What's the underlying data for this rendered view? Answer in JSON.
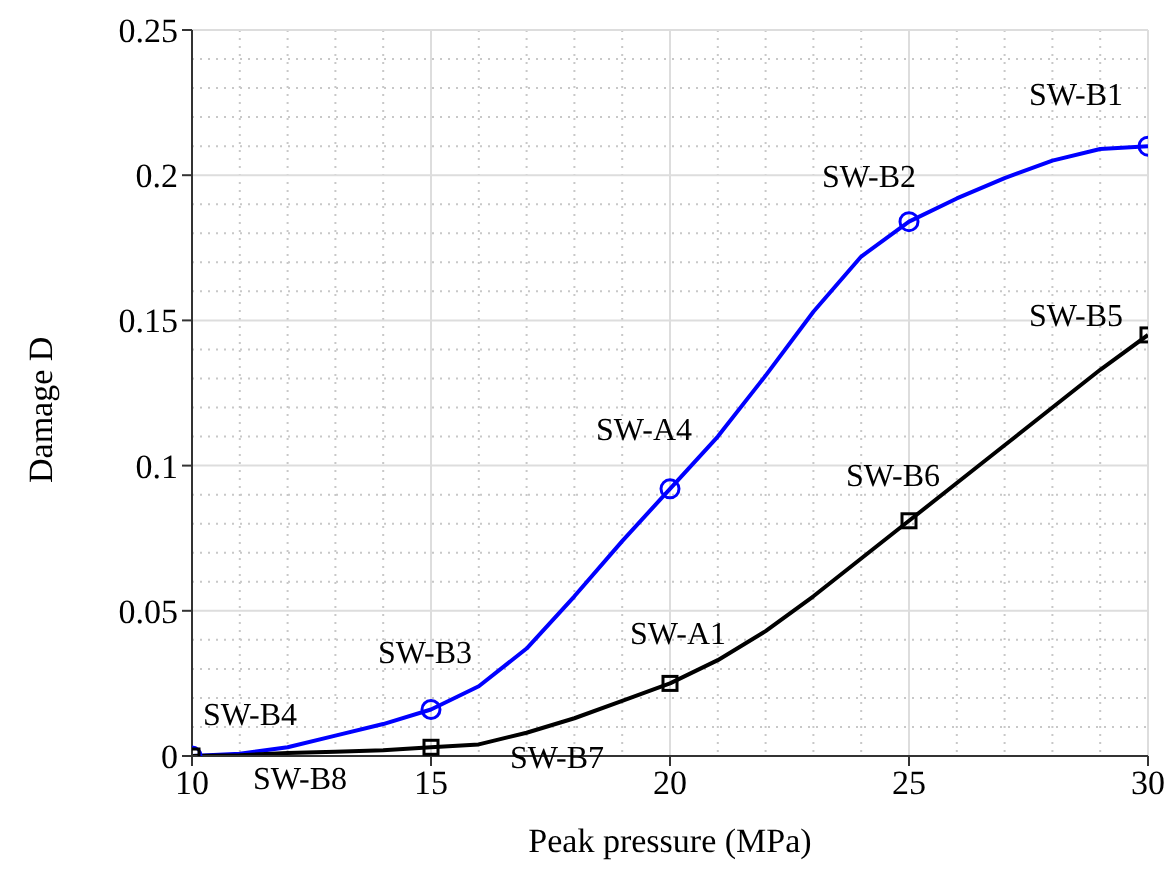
{
  "chart_data": {
    "type": "line",
    "xlabel": "Peak pressure (MPa)",
    "ylabel": "Damage D",
    "xlim": [
      10,
      30
    ],
    "xticks": [
      10,
      15,
      20,
      25,
      30
    ],
    "ylim": [
      0,
      0.25
    ],
    "yticks": [
      0,
      0.05,
      0.1,
      0.15,
      0.2,
      0.25
    ],
    "grid": true,
    "line_style": "solid",
    "series": [
      {
        "color": "#0000ff",
        "marker": "none",
        "x": [
          10,
          11,
          12,
          13,
          14,
          15,
          16,
          17,
          18,
          19,
          20,
          21,
          22,
          23,
          24,
          25,
          26,
          27,
          28,
          29,
          30
        ],
        "values": [
          0,
          0.0008,
          0.003,
          0.007,
          0.011,
          0.016,
          0.024,
          0.037,
          0.055,
          0.074,
          0.092,
          0.11,
          0.131,
          0.153,
          0.172,
          0.184,
          0.192,
          0.199,
          0.205,
          0.209,
          0.21
        ]
      },
      {
        "type": "scatter",
        "color": "#0000ff",
        "marker": "circle",
        "x": [
          10,
          15,
          20,
          25,
          30
        ],
        "values": [
          0,
          0.016,
          0.092,
          0.184,
          0.21
        ]
      },
      {
        "color": "#000000",
        "marker": "none",
        "x": [
          10,
          11,
          12,
          13,
          14,
          15,
          16,
          17,
          18,
          19,
          20,
          21,
          22,
          23,
          24,
          25,
          26,
          27,
          28,
          29,
          30
        ],
        "values": [
          0,
          0.0003,
          0.001,
          0.0015,
          0.002,
          0.003,
          0.004,
          0.008,
          0.013,
          0.019,
          0.025,
          0.033,
          0.043,
          0.055,
          0.068,
          0.081,
          0.094,
          0.107,
          0.12,
          0.133,
          0.145
        ]
      },
      {
        "type": "scatter",
        "color": "#000000",
        "marker": "square",
        "x": [
          10,
          15,
          20,
          25,
          30
        ],
        "values": [
          0,
          0.003,
          0.025,
          0.081,
          0.145
        ]
      }
    ],
    "annotations": [
      {
        "text": "SW-B4",
        "x": 10,
        "y": 0
      },
      {
        "text": "SW-B3",
        "x": 15,
        "y": 0.016
      },
      {
        "text": "SW-A4",
        "x": 20,
        "y": 0.092
      },
      {
        "text": "SW-B2",
        "x": 25,
        "y": 0.184
      },
      {
        "text": "SW-B1",
        "x": 30,
        "y": 0.21
      },
      {
        "text": "SW-B8",
        "x": 10,
        "y": 0
      },
      {
        "text": "SW-B7",
        "x": 15,
        "y": 0.003
      },
      {
        "text": "SW-A1",
        "x": 20,
        "y": 0.025
      },
      {
        "text": "SW-B6",
        "x": 25,
        "y": 0.081
      },
      {
        "text": "SW-B5",
        "x": 30,
        "y": 0.145
      }
    ]
  }
}
